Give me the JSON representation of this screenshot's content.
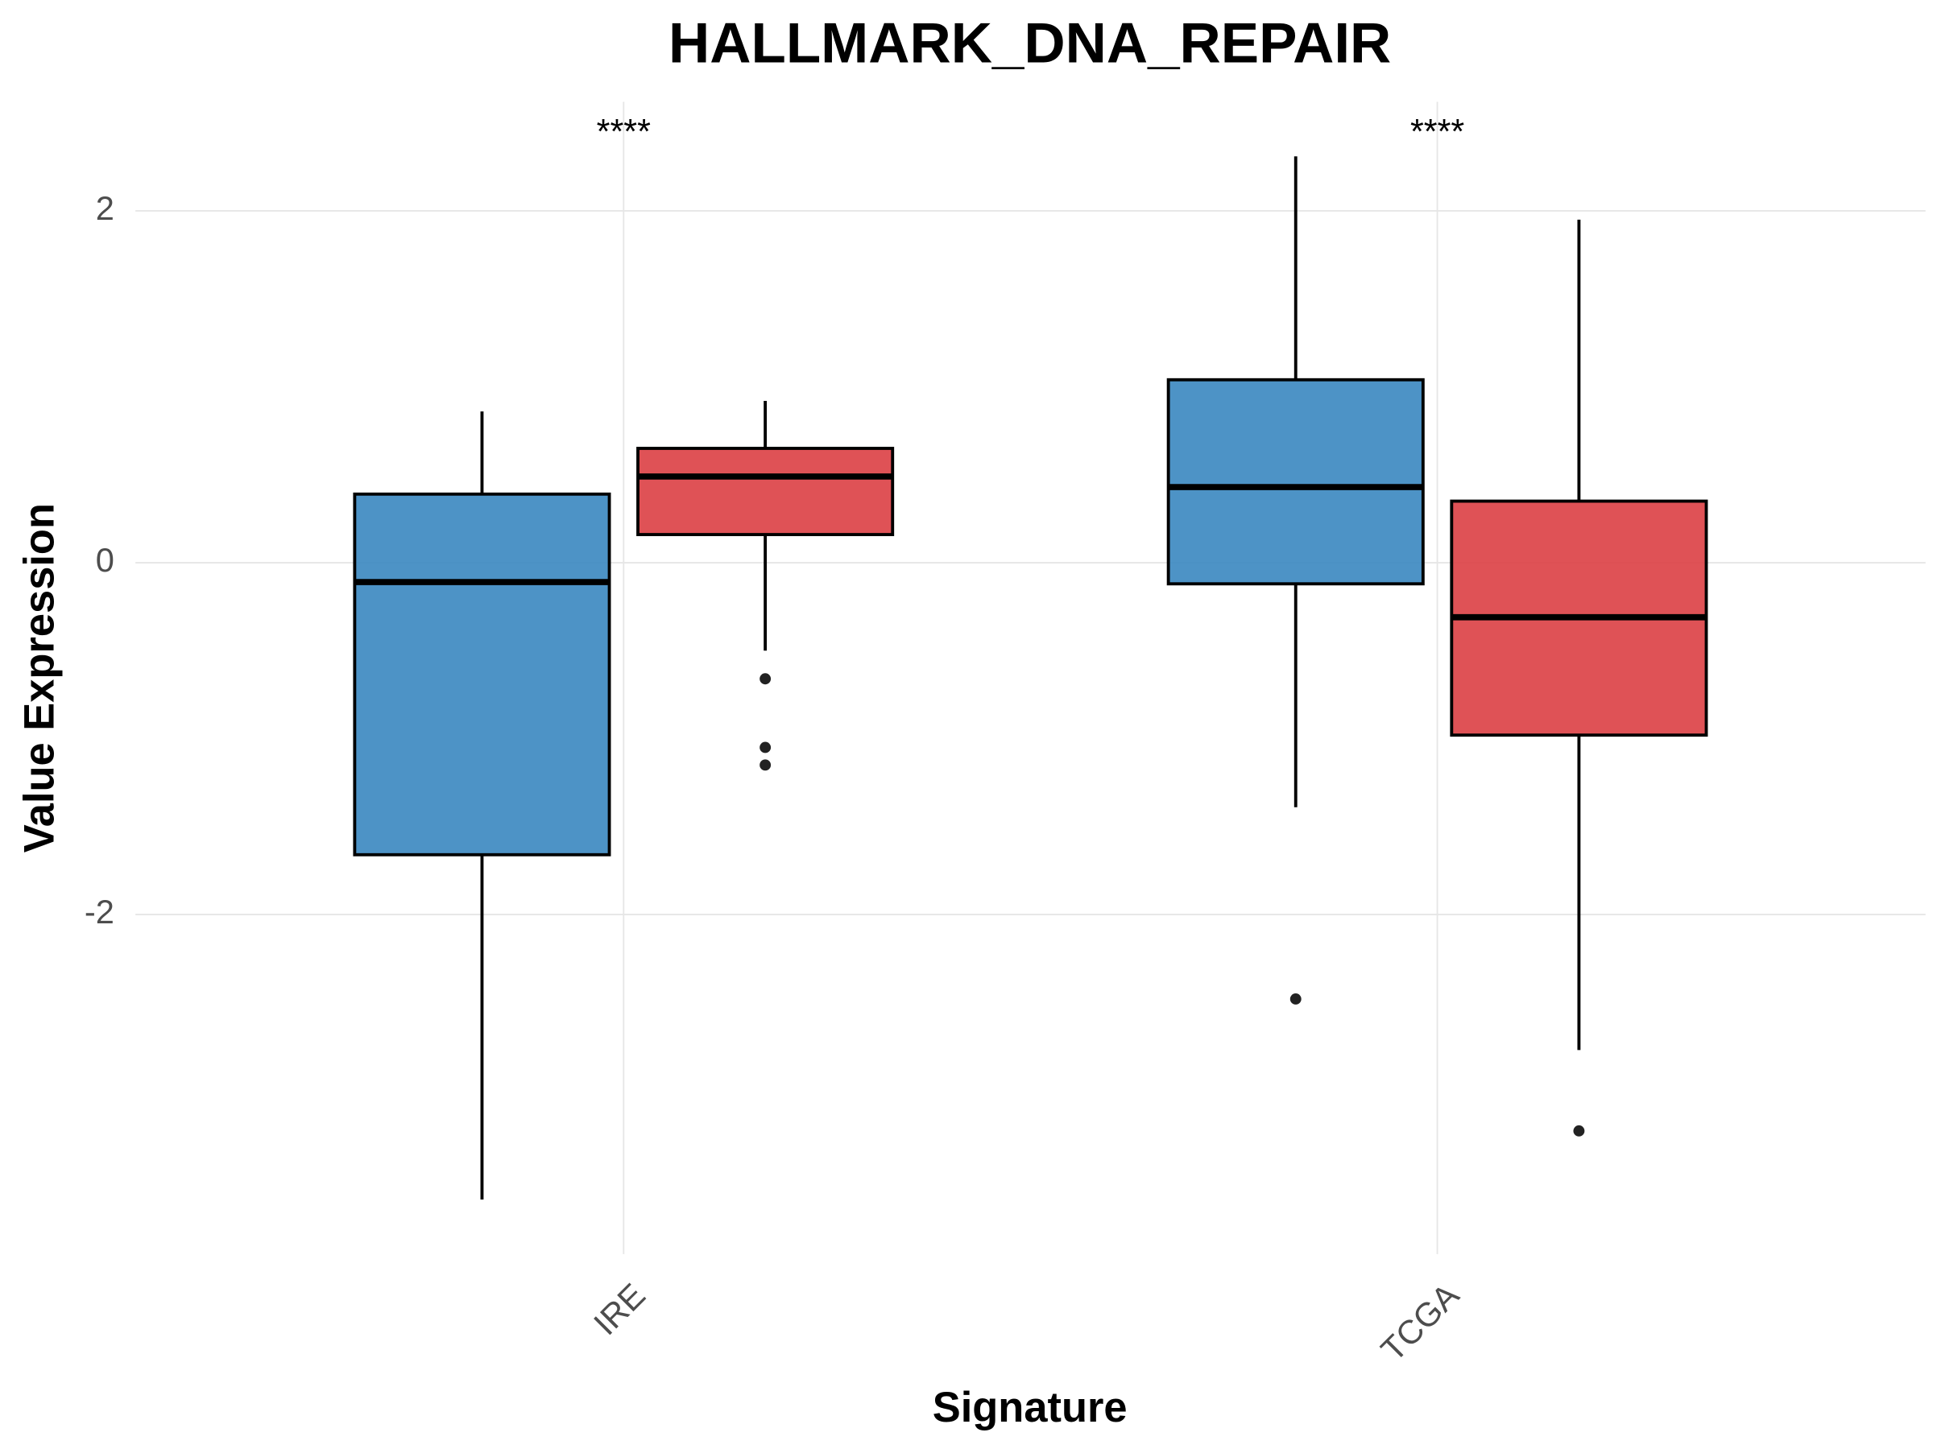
{
  "chart_data": {
    "type": "box",
    "title": "HALLMARK_DNA_REPAIR",
    "x_label": "Signature",
    "y_label": "Value Expression",
    "categories": [
      "IRE",
      "TCGA"
    ],
    "annotations": [
      "****",
      "****"
    ],
    "ylim": [
      -3.93,
      2.62
    ],
    "yticks": [
      -2,
      0,
      2
    ],
    "grid": true,
    "series": [
      {
        "color": "#3a87c0",
        "values": [
          {
            "low": -3.62,
            "q1": -1.66,
            "median": -0.11,
            "q3": 0.39,
            "high": 0.86,
            "outliers": []
          },
          {
            "low": -1.39,
            "q1": -0.12,
            "median": 0.43,
            "q3": 1.04,
            "high": 2.31,
            "outliers": [
              -2.48
            ]
          }
        ]
      },
      {
        "color": "#db3f44",
        "values": [
          {
            "low": -0.5,
            "q1": 0.16,
            "median": 0.49,
            "q3": 0.65,
            "high": 0.92,
            "outliers": [
              -0.66,
              -1.05,
              -1.15
            ]
          },
          {
            "low": -2.77,
            "q1": -0.98,
            "median": -0.31,
            "q3": 0.35,
            "high": 1.95,
            "outliers": [
              -3.23
            ]
          }
        ]
      }
    ]
  }
}
